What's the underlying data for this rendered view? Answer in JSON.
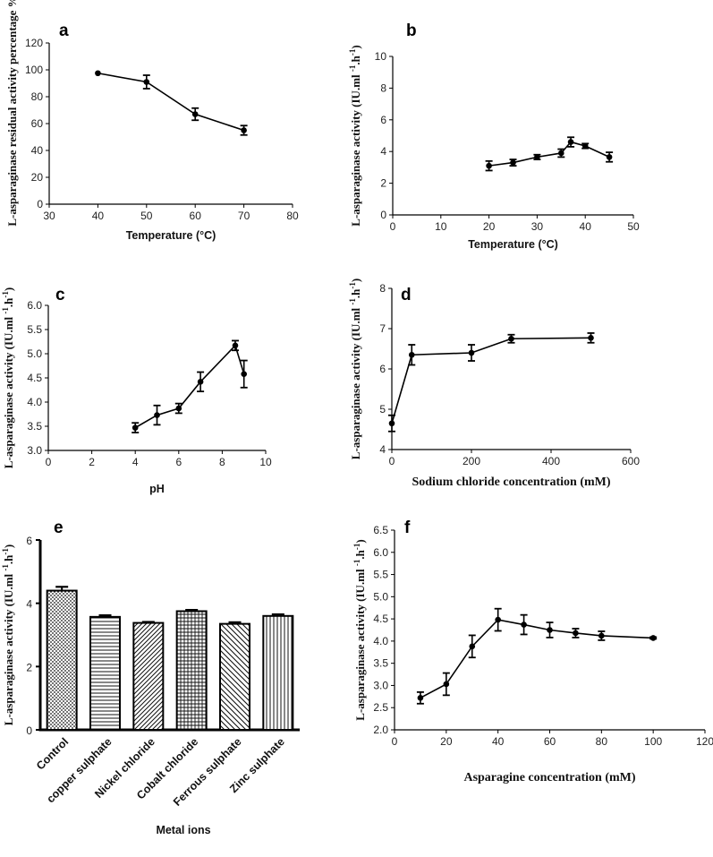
{
  "chart_data": [
    {
      "panel": "a",
      "type": "line",
      "title": "",
      "xlabel": "Temperature (°C)",
      "ylabel": "L-asparaginase residual activity percentage %",
      "xlim": [
        30,
        80
      ],
      "ylim": [
        0,
        120
      ],
      "xticks": [
        30,
        40,
        50,
        60,
        70,
        80
      ],
      "yticks": [
        0,
        20,
        40,
        60,
        80,
        100,
        120
      ],
      "x": [
        40,
        50,
        60,
        70
      ],
      "values": [
        97.5,
        91,
        67,
        55
      ],
      "errors": [
        0,
        5,
        4.5,
        3.5
      ],
      "grid": false
    },
    {
      "panel": "b",
      "type": "line",
      "title": "",
      "xlabel": "Temperature (°C)",
      "ylabel": "L-asparaginase activity (IU.ml -1.h-1)",
      "xlim": [
        0,
        50
      ],
      "ylim": [
        0,
        10
      ],
      "xticks": [
        0,
        10,
        20,
        30,
        40,
        50
      ],
      "yticks": [
        0,
        2,
        4,
        6,
        8,
        10
      ],
      "x": [
        20,
        25,
        30,
        35,
        37,
        40,
        45
      ],
      "values": [
        3.1,
        3.3,
        3.65,
        3.9,
        4.6,
        4.35,
        3.65
      ],
      "errors": [
        0.3,
        0.2,
        0.15,
        0.25,
        0.3,
        0.15,
        0.3
      ],
      "grid": false
    },
    {
      "panel": "c",
      "type": "line",
      "title": "",
      "xlabel": "pH",
      "ylabel": "L-asparaginase activity (IU.ml -1.h-1)",
      "xlim": [
        0,
        10
      ],
      "ylim": [
        3.0,
        6.0
      ],
      "xticks": [
        0,
        2,
        4,
        6,
        8,
        10
      ],
      "yticks": [
        "3.0",
        "3.5",
        "4.0",
        "4.5",
        "5.0",
        "5.5",
        "6.0"
      ],
      "x": [
        4,
        5,
        6,
        7,
        8.6,
        9
      ],
      "values": [
        3.47,
        3.73,
        3.87,
        4.42,
        5.17,
        4.58
      ],
      "errors": [
        0.1,
        0.2,
        0.1,
        0.2,
        0.1,
        0.28
      ],
      "grid": false
    },
    {
      "panel": "d",
      "type": "line",
      "title": "",
      "xlabel": "Sodium chloride concentration (mM)",
      "ylabel": "L-asparaginase activity (IU.ml -1.h-1)",
      "xlim": [
        0,
        600
      ],
      "ylim": [
        4,
        8
      ],
      "xticks": [
        0,
        200,
        400,
        600
      ],
      "yticks": [
        4,
        5,
        6,
        7,
        8
      ],
      "x": [
        0,
        50,
        200,
        300,
        500
      ],
      "values": [
        4.65,
        6.35,
        6.4,
        6.75,
        6.77
      ],
      "errors": [
        0.2,
        0.25,
        0.2,
        0.1,
        0.12
      ],
      "grid": false
    },
    {
      "panel": "e",
      "type": "bar",
      "title": "",
      "xlabel": "Metal ions",
      "ylabel": "L-asparaginase activity (IU.ml -1.h-1)",
      "ylim": [
        0,
        6
      ],
      "yticks": [
        0,
        2,
        4,
        6
      ],
      "categories": [
        "Control",
        "copper sulphate",
        "Nickel chloride",
        "Cobalt chloride",
        "Ferrous sulphate",
        "Zinc sulphate"
      ],
      "values": [
        4.4,
        3.57,
        3.38,
        3.75,
        3.35,
        3.6
      ],
      "errors": [
        0.12,
        0.05,
        0.03,
        0.04,
        0.05,
        0.05
      ],
      "patterns": [
        "dots",
        "hlines",
        "diag-right",
        "grid",
        "diag-left",
        "vlines"
      ],
      "grid": false
    },
    {
      "panel": "f",
      "type": "line",
      "title": "",
      "xlabel": "Asparagine concentration (mM)",
      "ylabel": "L-asparaginase activity (IU.ml -1.h-1)",
      "xlim": [
        0,
        120
      ],
      "ylim": [
        2.0,
        6.5
      ],
      "xticks": [
        0,
        20,
        40,
        60,
        80,
        100,
        120
      ],
      "yticks": [
        "2.0",
        "2.5",
        "3.0",
        "3.5",
        "4.0",
        "4.5",
        "5.0",
        "5.5",
        "6.0",
        "6.5"
      ],
      "x": [
        10,
        20,
        30,
        40,
        50,
        60,
        70,
        80,
        100
      ],
      "values": [
        2.72,
        3.03,
        3.88,
        4.48,
        4.37,
        4.25,
        4.18,
        4.12,
        4.07
      ],
      "errors": [
        0.13,
        0.25,
        0.25,
        0.25,
        0.22,
        0.17,
        0.1,
        0.1,
        0.02
      ],
      "grid": false
    }
  ]
}
